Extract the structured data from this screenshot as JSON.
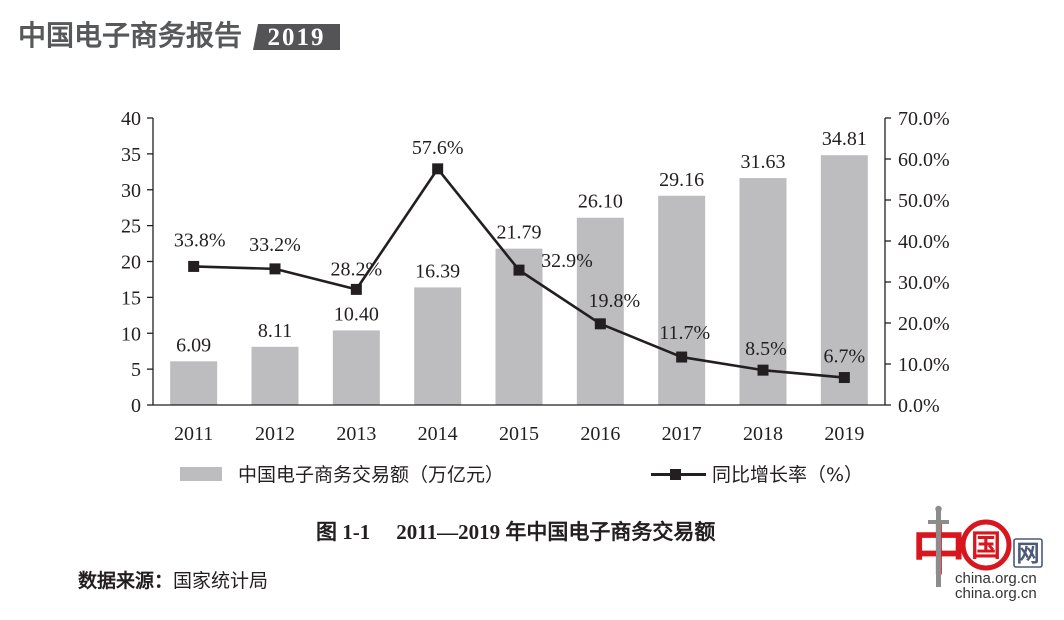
{
  "header": {
    "title": "中国电子商务报告",
    "year": "2019"
  },
  "chart_data": {
    "type": "bar",
    "title": "",
    "xlabel": "",
    "ylabel": "",
    "categories": [
      "2011",
      "2012",
      "2013",
      "2014",
      "2015",
      "2016",
      "2017",
      "2018",
      "2019"
    ],
    "series": [
      {
        "name": "中国电子商务交易额（万亿元）",
        "type": "bar",
        "axis": "left",
        "values": [
          6.09,
          8.11,
          10.4,
          16.39,
          21.79,
          26.1,
          29.16,
          31.63,
          34.81
        ]
      },
      {
        "name": "同比增长率（%）",
        "type": "line",
        "axis": "right",
        "values": [
          33.8,
          33.2,
          28.2,
          57.6,
          32.9,
          19.8,
          11.7,
          8.5,
          6.7
        ]
      }
    ],
    "bar_labels": [
      "6.09",
      "8.11",
      "10.40",
      "16.39",
      "21.79",
      "26.10",
      "29.16",
      "31.63",
      "34.81"
    ],
    "line_labels": [
      "33.8%",
      "33.2%",
      "28.2%",
      "57.6%",
      "32.9%",
      "19.8%",
      "11.7%",
      "8.5%",
      "6.7%"
    ],
    "y_left": {
      "min": 0,
      "max": 40,
      "step": 5,
      "ticks": [
        "0",
        "5",
        "10",
        "15",
        "20",
        "25",
        "30",
        "35",
        "40"
      ]
    },
    "y_right": {
      "min": 0,
      "max": 70,
      "step": 10,
      "ticks": [
        "0.0%",
        "10.0%",
        "20.0%",
        "30.0%",
        "40.0%",
        "50.0%",
        "60.0%",
        "70.0%"
      ]
    },
    "legend_position": "bottom",
    "grid": false
  },
  "caption": {
    "figure_no": "图 1-1",
    "title": "2011—2019 年中国电子商务交易额"
  },
  "source": {
    "label": "数据来源：",
    "value": "国家统计局"
  },
  "logo": {
    "zhong": "中",
    "guo": "国",
    "wang": "网",
    "domain_line_1": "china.org.cn",
    "domain_line_2": "china.org.cn"
  },
  "colors": {
    "bar": "#bdbdbf",
    "line": "#231f20",
    "axis": "#231f20",
    "header_text": "#57585a",
    "year_badge_bg": "#545456",
    "logo_red": "#d8161d",
    "logo_blue": "#4b5a78",
    "logo_gray": "#8c8c8c"
  }
}
